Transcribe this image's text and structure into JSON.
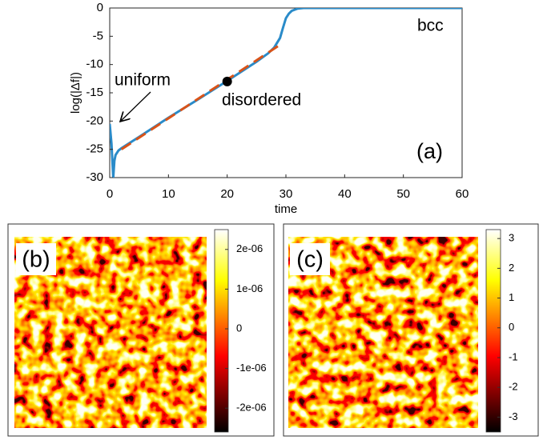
{
  "chart_data": [
    {
      "type": "line",
      "xlabel": "time",
      "ylabel": "log(|Δf|)",
      "xlim": [
        0,
        60
      ],
      "ylim": [
        -30,
        0
      ],
      "xticks": [
        0,
        10,
        20,
        30,
        40,
        50,
        60
      ],
      "yticks": [
        0,
        -5,
        -10,
        -15,
        -20,
        -25,
        -30
      ],
      "series": [
        {
          "color": "#2a8bc9",
          "dash": false,
          "x": [
            0,
            0.3,
            0.6,
            0.8,
            1,
            1.5,
            2,
            5,
            10,
            15,
            20,
            25,
            27,
            28,
            29,
            29.5,
            30,
            30.5,
            31,
            32,
            33,
            40,
            50,
            60
          ],
          "values": [
            -20.5,
            -24,
            -30,
            -27,
            -26,
            -25.2,
            -24.8,
            -22.8,
            -19.4,
            -16.2,
            -12.9,
            -9.5,
            -8,
            -7,
            -5.3,
            -3.5,
            -1.8,
            -1,
            -0.5,
            -0.1,
            0,
            0,
            0,
            0
          ]
        },
        {
          "color": "#d95319",
          "dash": true,
          "x": [
            2,
            29
          ],
          "values": [
            -25,
            -6.5
          ]
        }
      ],
      "points": {
        "color": "#000000",
        "x": [
          20
        ],
        "values": [
          -13
        ]
      },
      "annotations": [
        "uniform",
        "disordered",
        "bcc",
        "(a)"
      ]
    },
    {
      "type": "heatmap",
      "label": "(b)",
      "clim": [
        -2.6e-06,
        2.5e-06
      ],
      "cticks": [
        {
          "value": 2e-06,
          "label": "2e-06"
        },
        {
          "value": 1e-06,
          "label": "1e-06"
        },
        0,
        {
          "value": -1e-06,
          "label": "-1e-06"
        },
        {
          "value": -2e-06,
          "label": "-2e-06"
        }
      ]
    },
    {
      "type": "heatmap",
      "label": "(c)",
      "clim": [
        -3.5,
        3.3
      ],
      "cticks": [
        3,
        2,
        1,
        0,
        -1,
        -2,
        -3
      ]
    }
  ]
}
